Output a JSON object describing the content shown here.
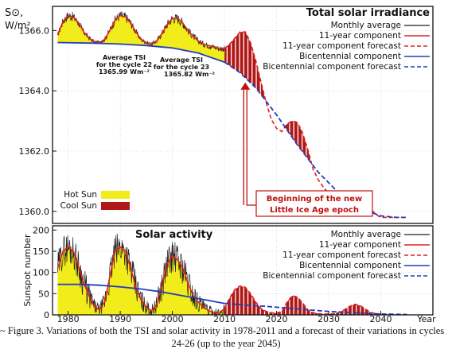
{
  "caption": {
    "mark": "~",
    "line1": "Figure 3. Variations of both the TSI and solar activity in 1978-2011 and a forecast of their variations in cycles",
    "line2": "24-26 (up to the year 2045)"
  },
  "colors": {
    "hot_sun": "#f2ec1b",
    "cool_sun": "#b01818",
    "monthly": "#222222",
    "eleven_year": "#e02020",
    "bicentennial": "#1f3fbf",
    "annotation": "#c01010"
  },
  "chart_data": [
    {
      "type": "line",
      "title": "Total solar irradiance",
      "ylabel_line1": "S⊙,",
      "ylabel_line2": "W/m²",
      "xlabel": "",
      "xlim": [
        1977,
        2050
      ],
      "ylim": [
        1359.6,
        1366.8
      ],
      "yticks": [
        "1366.0",
        "1364.0",
        "1362.0",
        "1360.0"
      ],
      "ytick_values": [
        1366,
        1364,
        1362,
        1360
      ],
      "legend": {
        "position": "top-right",
        "entries": [
          "Monthly average",
          "11-year component",
          "11-year component forecast",
          "Bicentennial component",
          "Bicentennial component forecast"
        ]
      },
      "fill_legend": {
        "position": "bottom-left",
        "entries": [
          "Hot Sun",
          "Cool Sun"
        ]
      },
      "annotations": {
        "cycle22": {
          "line1": "Average TSI",
          "line2": "for the cycle 22",
          "line3": "1365.99 Wm⁻²"
        },
        "cycle23": {
          "line1": "Average TSI",
          "line2": "for the cycle 23",
          "line3": "1365.82 Wm⁻²"
        },
        "ice_age": {
          "line1": "Beginning of the new",
          "line2": "Little Ice Age epoch",
          "arrow_year": 2014
        }
      },
      "series": [
        {
          "name": "Bicentennial component",
          "x": [
            1978,
            1985,
            1990,
            1995,
            2000,
            2005,
            2010
          ],
          "y": [
            1365.6,
            1365.58,
            1365.55,
            1365.5,
            1365.42,
            1365.25,
            1364.95
          ]
        },
        {
          "name": "Bicentennial component forecast",
          "x": [
            2010,
            2013,
            2016,
            2020,
            2024,
            2028,
            2032,
            2036,
            2040,
            2043,
            2045
          ],
          "y": [
            1364.95,
            1364.6,
            1364.1,
            1363.2,
            1362.2,
            1361.3,
            1360.6,
            1360.1,
            1359.85,
            1359.8,
            1359.8
          ]
        },
        {
          "name": "11-year component",
          "x": [
            1978,
            1979,
            1980,
            1981,
            1982,
            1983,
            1984,
            1985,
            1986,
            1987,
            1988,
            1989,
            1990,
            1991,
            1992,
            1993,
            1994,
            1995,
            1996,
            1997,
            1998,
            1999,
            2000,
            2001,
            2002,
            2003,
            2004,
            2005,
            2006,
            2007,
            2008,
            2009,
            2010
          ],
          "y": [
            1365.85,
            1366.3,
            1366.5,
            1366.45,
            1366.25,
            1365.95,
            1365.75,
            1365.62,
            1365.6,
            1365.7,
            1366.0,
            1366.35,
            1366.5,
            1366.45,
            1366.25,
            1365.95,
            1365.7,
            1365.6,
            1365.55,
            1365.65,
            1365.9,
            1366.2,
            1366.4,
            1366.4,
            1366.25,
            1366.0,
            1365.8,
            1365.65,
            1365.55,
            1365.5,
            1365.45,
            1365.4,
            1365.4
          ]
        },
        {
          "name": "11-year component forecast",
          "x": [
            2010,
            2011,
            2012,
            2013,
            2014,
            2015,
            2016,
            2017,
            2018,
            2019,
            2020,
            2021,
            2022,
            2023,
            2024,
            2025,
            2026,
            2027,
            2028,
            2029,
            2030,
            2031,
            2032,
            2033,
            2034,
            2035,
            2036,
            2037,
            2038,
            2039,
            2040,
            2042,
            2045
          ],
          "y": [
            1365.4,
            1365.55,
            1365.75,
            1365.95,
            1365.95,
            1365.6,
            1365.0,
            1364.3,
            1363.6,
            1363.05,
            1362.75,
            1362.65,
            1362.9,
            1363.0,
            1362.95,
            1362.6,
            1362.05,
            1361.4,
            1361.05,
            1360.8,
            1360.6,
            1360.45,
            1360.35,
            1360.35,
            1360.5,
            1360.6,
            1360.6,
            1360.4,
            1360.1,
            1359.9,
            1359.8,
            1359.8,
            1359.8
          ]
        }
      ]
    },
    {
      "type": "line",
      "title": "Solar activity",
      "ylabel": "Sunspot number",
      "xlabel": "Year",
      "xlim": [
        1977,
        2050
      ],
      "ylim": [
        0,
        210
      ],
      "xticks": [
        "1980",
        "1990",
        "2000",
        "2010",
        "2020",
        "2030",
        "2040"
      ],
      "xtick_values": [
        1980,
        1990,
        2000,
        2010,
        2020,
        2030,
        2040
      ],
      "yticks": [
        "200",
        "150",
        "100",
        "50",
        "0"
      ],
      "ytick_values": [
        200,
        150,
        100,
        50,
        0
      ],
      "legend": {
        "position": "top-right",
        "entries": [
          "Monthly average",
          "11-year component",
          "11-year component forecast",
          "Bicentennial component",
          "Bicentennial component forecast"
        ]
      },
      "series": [
        {
          "name": "Bicentennial component",
          "x": [
            1978,
            1982,
            1986,
            1990,
            1994,
            1998,
            2002,
            2006,
            2010
          ],
          "y": [
            72,
            72,
            70,
            66,
            61,
            54,
            45,
            36,
            27
          ]
        },
        {
          "name": "Bicentennial component forecast",
          "x": [
            2010,
            2014,
            2018,
            2022,
            2026,
            2030,
            2035,
            2040,
            2045
          ],
          "y": [
            27,
            23,
            20,
            16,
            12,
            8,
            5,
            2,
            1
          ]
        },
        {
          "name": "11-year component",
          "x": [
            1978,
            1979,
            1980,
            1981,
            1982,
            1983,
            1984,
            1985,
            1986,
            1987,
            1988,
            1989,
            1990,
            1991,
            1992,
            1993,
            1994,
            1995,
            1996,
            1997,
            1998,
            1999,
            2000,
            2001,
            2002,
            2003,
            2004,
            2005,
            2006,
            2007,
            2008,
            2009,
            2010
          ],
          "y": [
            110,
            150,
            160,
            150,
            115,
            75,
            45,
            20,
            12,
            30,
            90,
            150,
            160,
            150,
            110,
            65,
            35,
            18,
            10,
            25,
            70,
            120,
            140,
            130,
            110,
            75,
            45,
            30,
            18,
            10,
            5,
            4,
            15
          ]
        },
        {
          "name": "11-year component forecast",
          "x": [
            2010,
            2011,
            2012,
            2013,
            2014,
            2015,
            2016,
            2017,
            2018,
            2019,
            2020,
            2021,
            2022,
            2023,
            2024,
            2025,
            2026,
            2027,
            2028,
            2029,
            2030,
            2031,
            2032,
            2033,
            2034,
            2035,
            2036,
            2037,
            2038,
            2039,
            2040,
            2042,
            2045
          ],
          "y": [
            15,
            40,
            60,
            68,
            65,
            50,
            30,
            15,
            8,
            5,
            4,
            8,
            30,
            45,
            42,
            28,
            12,
            5,
            3,
            2,
            2,
            3,
            6,
            12,
            20,
            25,
            22,
            14,
            6,
            3,
            1,
            0,
            0
          ]
        }
      ]
    }
  ]
}
